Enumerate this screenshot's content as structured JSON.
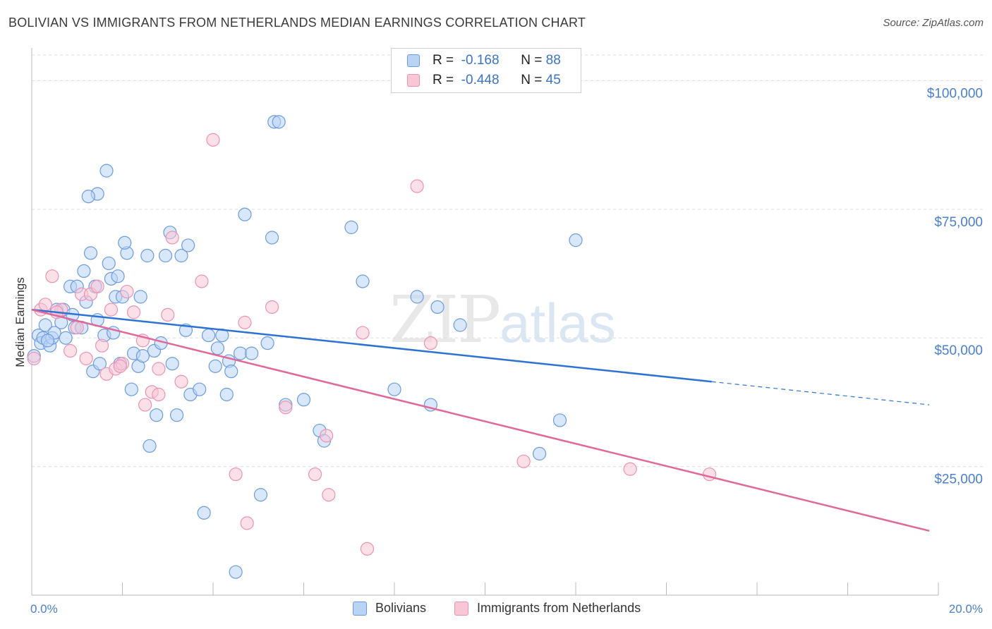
{
  "title": "BOLIVIAN VS IMMIGRANTS FROM NETHERLANDS MEDIAN EARNINGS CORRELATION CHART",
  "source": "Source: ZipAtlas.com",
  "watermark": {
    "zip": "ZIP",
    "atlas": "atlas"
  },
  "legend": {
    "rows": [
      {
        "r_label": "R =",
        "r_value": "-0.168",
        "n_label": "N =",
        "n_value": "88"
      },
      {
        "r_label": "R =",
        "r_value": "-0.448",
        "n_label": "N =",
        "n_value": "45"
      }
    ]
  },
  "bottom_legend": [
    "Bolivians",
    "Immigrants from Netherlands"
  ],
  "colors": {
    "blue_fill": "#b9d3f5",
    "blue_stroke": "#6b9be0",
    "blue_line": "#2e72d2",
    "pink_fill": "#f9c6d6",
    "pink_stroke": "#ec92b0",
    "pink_line": "#e0689a",
    "tick_text": "#4a7fd0",
    "grid": "#dddddd"
  },
  "chart_data": {
    "type": "scatter",
    "title": "BOLIVIAN VS IMMIGRANTS FROM NETHERLANDS MEDIAN EARNINGS CORRELATION CHART",
    "xlabel": "",
    "ylabel": "Median Earnings",
    "xlim": [
      0,
      20
    ],
    "ylim": [
      0,
      105000
    ],
    "x_tick_labels": [
      "0.0%",
      "20.0%"
    ],
    "y_ticks": [
      25000,
      50000,
      75000,
      100000
    ],
    "y_tick_labels": [
      "$25,000",
      "$50,000",
      "$75,000",
      "$100,000"
    ],
    "grid": true,
    "series": [
      {
        "name": "Bolivians",
        "points": [
          [
            0.05,
            46500
          ],
          [
            0.15,
            50500
          ],
          [
            0.2,
            49000
          ],
          [
            0.25,
            50000
          ],
          [
            0.3,
            52500
          ],
          [
            0.4,
            48500
          ],
          [
            0.45,
            50000
          ],
          [
            0.55,
            55500
          ],
          [
            0.65,
            53000
          ],
          [
            0.7,
            55500
          ],
          [
            0.75,
            50000
          ],
          [
            0.85,
            60000
          ],
          [
            0.9,
            54500
          ],
          [
            0.95,
            52000
          ],
          [
            1.0,
            60000
          ],
          [
            1.1,
            52000
          ],
          [
            1.15,
            63000
          ],
          [
            1.2,
            57000
          ],
          [
            1.3,
            66500
          ],
          [
            1.35,
            43500
          ],
          [
            1.4,
            60000
          ],
          [
            1.45,
            53500
          ],
          [
            1.5,
            45000
          ],
          [
            1.6,
            50500
          ],
          [
            1.7,
            64500
          ],
          [
            1.75,
            61500
          ],
          [
            1.85,
            58000
          ],
          [
            1.9,
            62000
          ],
          [
            1.95,
            45000
          ],
          [
            2.0,
            58000
          ],
          [
            2.1,
            66500
          ],
          [
            2.2,
            40000
          ],
          [
            2.25,
            47000
          ],
          [
            2.35,
            44500
          ],
          [
            2.4,
            58000
          ],
          [
            2.45,
            46500
          ],
          [
            2.55,
            66000
          ],
          [
            2.6,
            29000
          ],
          [
            2.7,
            47500
          ],
          [
            2.75,
            35000
          ],
          [
            2.85,
            49000
          ],
          [
            2.95,
            66000
          ],
          [
            3.05,
            70500
          ],
          [
            3.1,
            45000
          ],
          [
            3.2,
            35000
          ],
          [
            3.3,
            66000
          ],
          [
            3.4,
            51500
          ],
          [
            3.5,
            39000
          ],
          [
            3.7,
            40000
          ],
          [
            3.8,
            16000
          ],
          [
            3.9,
            50500
          ],
          [
            4.05,
            44500
          ],
          [
            4.1,
            48000
          ],
          [
            4.2,
            50500
          ],
          [
            4.3,
            39000
          ],
          [
            4.35,
            45500
          ],
          [
            4.4,
            43500
          ],
          [
            4.6,
            47000
          ],
          [
            4.7,
            74000
          ],
          [
            4.85,
            47000
          ],
          [
            5.05,
            19500
          ],
          [
            5.2,
            49000
          ],
          [
            5.3,
            69500
          ],
          [
            5.35,
            92000
          ],
          [
            5.45,
            92000
          ],
          [
            5.6,
            37000
          ],
          [
            6.0,
            38000
          ],
          [
            6.35,
            32000
          ],
          [
            6.45,
            30000
          ],
          [
            7.05,
            71500
          ],
          [
            7.3,
            61000
          ],
          [
            8.0,
            40000
          ],
          [
            8.5,
            58000
          ],
          [
            8.8,
            37000
          ],
          [
            8.95,
            56000
          ],
          [
            9.45,
            52500
          ],
          [
            11.2,
            27500
          ],
          [
            11.65,
            34000
          ],
          [
            12.0,
            69000
          ],
          [
            1.65,
            82500
          ],
          [
            1.45,
            78000
          ],
          [
            1.25,
            77500
          ],
          [
            3.45,
            68000
          ],
          [
            2.05,
            68500
          ],
          [
            4.5,
            4500
          ],
          [
            1.8,
            51000
          ],
          [
            0.5,
            51000
          ],
          [
            0.35,
            49500
          ]
        ]
      },
      {
        "name": "Immigrants from Netherlands",
        "points": [
          [
            0.05,
            46000
          ],
          [
            0.2,
            55500
          ],
          [
            0.3,
            56500
          ],
          [
            0.45,
            62000
          ],
          [
            0.65,
            55500
          ],
          [
            0.85,
            47500
          ],
          [
            1.0,
            52000
          ],
          [
            1.1,
            58500
          ],
          [
            1.2,
            46000
          ],
          [
            1.3,
            58500
          ],
          [
            1.45,
            60000
          ],
          [
            1.55,
            48500
          ],
          [
            1.65,
            43000
          ],
          [
            1.75,
            55500
          ],
          [
            1.85,
            44000
          ],
          [
            2.0,
            45000
          ],
          [
            2.1,
            59000
          ],
          [
            2.25,
            55000
          ],
          [
            2.45,
            49500
          ],
          [
            2.5,
            37000
          ],
          [
            2.65,
            39500
          ],
          [
            2.8,
            39000
          ],
          [
            3.0,
            54500
          ],
          [
            3.1,
            69500
          ],
          [
            3.3,
            41500
          ],
          [
            3.75,
            61000
          ],
          [
            4.0,
            88500
          ],
          [
            4.5,
            23500
          ],
          [
            4.7,
            53000
          ],
          [
            4.75,
            14000
          ],
          [
            5.3,
            56000
          ],
          [
            5.6,
            36500
          ],
          [
            6.25,
            23500
          ],
          [
            6.5,
            31000
          ],
          [
            6.55,
            19500
          ],
          [
            7.3,
            51000
          ],
          [
            7.4,
            9000
          ],
          [
            8.5,
            79500
          ],
          [
            8.8,
            49000
          ],
          [
            10.85,
            26000
          ],
          [
            13.2,
            24500
          ],
          [
            14.95,
            23500
          ],
          [
            2.8,
            44000
          ],
          [
            1.95,
            44500
          ],
          [
            0.55,
            55000
          ]
        ]
      }
    ],
    "trend_lines": [
      {
        "series": "Bolivians",
        "from": [
          0,
          55500
        ],
        "to": [
          15.0,
          41500
        ],
        "dashed_to": [
          19.8,
          37000
        ]
      },
      {
        "series": "Immigrants from Netherlands",
        "from": [
          0,
          55500
        ],
        "to": [
          19.8,
          12500
        ]
      }
    ]
  }
}
